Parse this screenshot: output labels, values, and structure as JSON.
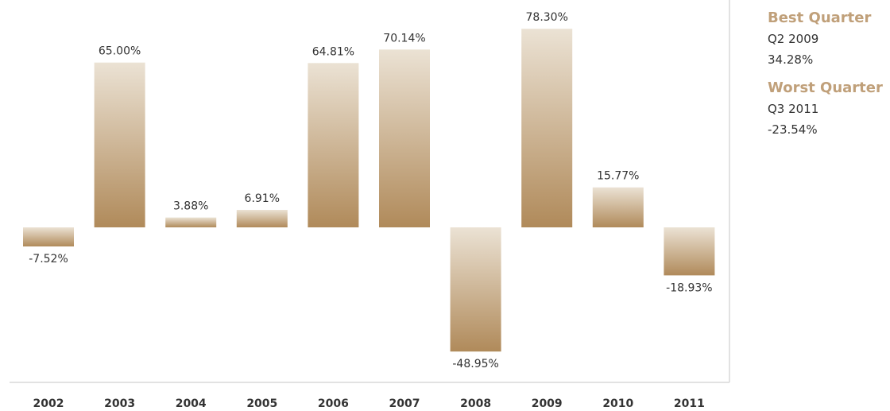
{
  "chart_data": {
    "type": "bar",
    "categories": [
      "2002",
      "2003",
      "2004",
      "2005",
      "2006",
      "2007",
      "2008",
      "2009",
      "2010",
      "2011"
    ],
    "values": [
      -7.52,
      65.0,
      3.88,
      6.91,
      64.81,
      70.14,
      -48.95,
      78.3,
      15.77,
      -18.93
    ],
    "value_labels": [
      "-7.52%",
      "65.00%",
      "3.88%",
      "6.91%",
      "64.81%",
      "70.14%",
      "-48.95%",
      "78.30%",
      "15.77%",
      "-18.93%"
    ],
    "title": "",
    "xlabel": "",
    "ylabel": "",
    "ylim": [
      -60,
      85
    ],
    "grid": false,
    "bar_gradient": [
      "#ebe2d4",
      "#b08a5a"
    ]
  },
  "best": {
    "heading": "Best Quarter",
    "period": "Q2 2009",
    "value": "34.28%"
  },
  "worst": {
    "heading": "Worst Quarter",
    "period": "Q3 2011",
    "value": "-23.54%"
  },
  "colors": {
    "accent": "#c0a07a",
    "text": "#333333",
    "axis": "#d9d9d9"
  }
}
